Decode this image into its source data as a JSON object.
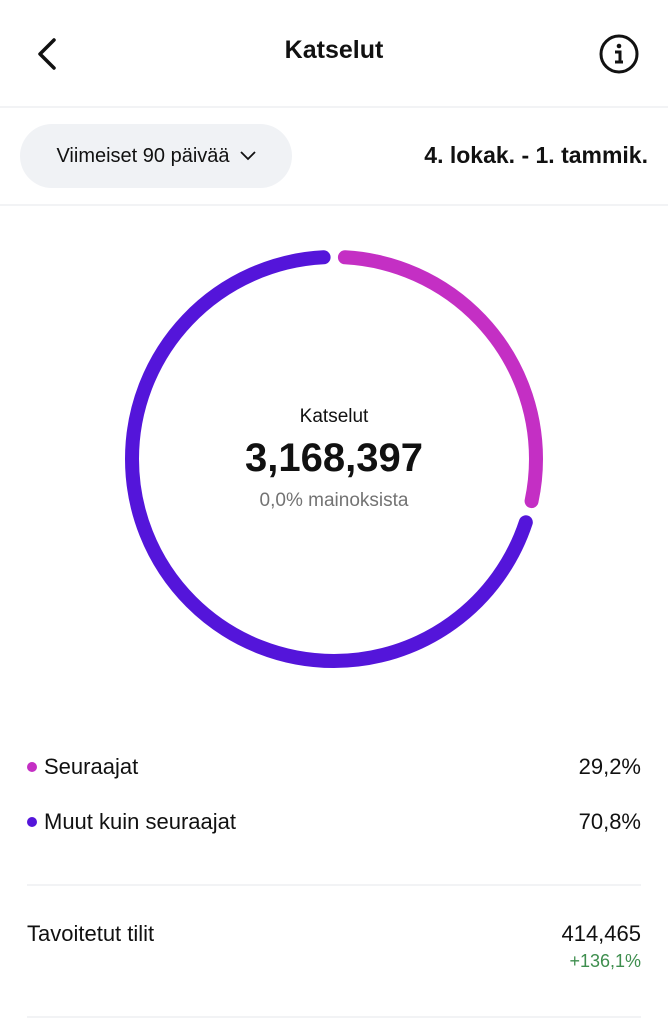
{
  "header": {
    "title": "Katselut",
    "back_icon": "chevron-left-icon",
    "info_icon": "info-icon"
  },
  "filter": {
    "period_label": "Viimeiset 90 päivää",
    "date_range": "4. lokak. - 1. tammik."
  },
  "chart_data": {
    "type": "pie",
    "title": "Katselut",
    "total": "3,168,397",
    "subtitle": "0,0% mainoksista",
    "series": [
      {
        "name": "Seuraajat",
        "value": 29.2,
        "label": "29,2%",
        "color": "#C42FC4"
      },
      {
        "name": "Muut kuin seuraajat",
        "value": 70.8,
        "label": "70,8%",
        "color": "#5415DA"
      }
    ]
  },
  "stats": {
    "reached_label": "Tavoitetut tilit",
    "reached_value": "414,465",
    "reached_change": "+136,1%",
    "change_color": "#3E8E4E"
  }
}
